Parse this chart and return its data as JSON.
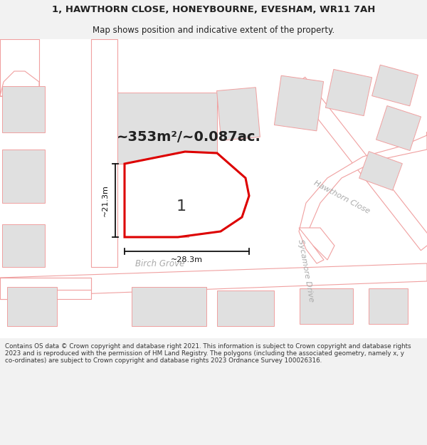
{
  "title_line1": "1, HAWTHORN CLOSE, HONEYBOURNE, EVESHAM, WR11 7AH",
  "title_line2": "Map shows position and indicative extent of the property.",
  "area_text": "~353m²/~0.087ac.",
  "label_number": "1",
  "dim_vertical": "~21.3m",
  "dim_horizontal": "~28.3m",
  "street_birch_grove": "Birch Grove",
  "street_hawthorn_close": "Hawthorn Close",
  "street_sycamore_drive": "Sycamore Drive",
  "footer": "Contains OS data © Crown copyright and database right 2021. This information is subject to Crown copyright and database rights 2023 and is reproduced with the permission of HM Land Registry. The polygons (including the associated geometry, namely x, y co-ordinates) are subject to Crown copyright and database rights 2023 Ordnance Survey 100026316.",
  "bg_color": "#f2f2f2",
  "map_bg": "#ffffff",
  "road_fill": "#ffffff",
  "road_stroke": "#f0a0a0",
  "building_fill": "#e0e0e0",
  "building_stroke": "#f0a0a0",
  "highlight_fill": "none",
  "highlight_stroke": "#dd0000",
  "title_color": "#222222",
  "area_color": "#222222",
  "street_color": "#aaaaaa",
  "dim_color": "#111111",
  "footer_color": "#333333"
}
